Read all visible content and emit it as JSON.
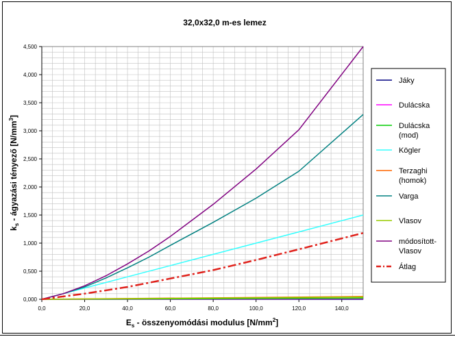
{
  "chart_data": {
    "type": "line",
    "title": "32,0x32,0 m-es lemez",
    "xlabel": "E",
    "xlabel_sub": "s",
    "xlabel_rest": " - összenyomódási modulus [N/mm",
    "xlabel_sup": "2",
    "xlabel_end": "]",
    "ylabel": "k",
    "ylabel_sub": "s",
    "ylabel_rest": " - ágyazási tényező [N/mm",
    "ylabel_sup": "3",
    "ylabel_end": "]",
    "xlim": [
      0,
      150
    ],
    "ylim": [
      0,
      4.5
    ],
    "grid": true,
    "legend_position": "right",
    "x_ticks": [
      0,
      20,
      40,
      60,
      80,
      100,
      120,
      140
    ],
    "x_tick_labels": [
      "0,0",
      "20,0",
      "40,0",
      "60,0",
      "80,0",
      "100,0",
      "120,0",
      "140,0"
    ],
    "y_ticks": [
      0,
      0.5,
      1,
      1.5,
      2,
      2.5,
      3,
      3.5,
      4,
      4.5
    ],
    "y_tick_labels": [
      "0,000",
      "0,500",
      "1,000",
      "1,500",
      "2,000",
      "2,500",
      "3,000",
      "3,500",
      "4,000",
      "4,500"
    ],
    "series": [
      {
        "name": "Jáky",
        "color": "#000080",
        "dash": "solid",
        "x": [
          0,
          150
        ],
        "y": [
          0,
          0.0
        ]
      },
      {
        "name": "Dulácska",
        "color": "#ff00ff",
        "dash": "solid",
        "x": [
          0,
          150
        ],
        "y": [
          0,
          0.01
        ]
      },
      {
        "name": "Dulácska (mod)",
        "color": "#00cc00",
        "dash": "solid",
        "x": [
          0,
          150
        ],
        "y": [
          0,
          0.02
        ]
      },
      {
        "name": "Kögler",
        "color": "#33ffff",
        "dash": "solid",
        "x": [
          0,
          10,
          20,
          40,
          60,
          80,
          100,
          120,
          150
        ],
        "y": [
          0,
          0.1,
          0.2,
          0.4,
          0.6,
          0.8,
          1.0,
          1.2,
          1.5
        ]
      },
      {
        "name": "Terzaghi (homok)",
        "color": "#ff6600",
        "dash": "solid",
        "x": [
          0,
          150
        ],
        "y": [
          0,
          0.05
        ]
      },
      {
        "name": "Varga",
        "color": "#008080",
        "dash": "solid",
        "x": [
          0,
          10,
          20,
          30,
          40,
          50,
          60,
          80,
          100,
          120,
          150
        ],
        "y": [
          0,
          0.1,
          0.22,
          0.38,
          0.56,
          0.75,
          0.96,
          1.37,
          1.8,
          2.28,
          3.29
        ]
      },
      {
        "name": "Vlasov",
        "color": "#99cc00",
        "dash": "solid",
        "x": [
          0,
          150
        ],
        "y": [
          0,
          0.04
        ]
      },
      {
        "name": "módosított-Vlasov",
        "color": "#800080",
        "dash": "solid",
        "x": [
          0,
          10,
          20,
          30,
          40,
          50,
          60,
          80,
          100,
          120,
          150
        ],
        "y": [
          0,
          0.1,
          0.24,
          0.42,
          0.63,
          0.86,
          1.12,
          1.69,
          2.32,
          3.02,
          4.5
        ]
      },
      {
        "name": "Átlag",
        "color": "#e0201a",
        "dash": "dashdot",
        "x": [
          0,
          20,
          40,
          60,
          80,
          100,
          120,
          150
        ],
        "y": [
          0,
          0.1,
          0.22,
          0.37,
          0.52,
          0.7,
          0.89,
          1.18
        ]
      }
    ]
  }
}
